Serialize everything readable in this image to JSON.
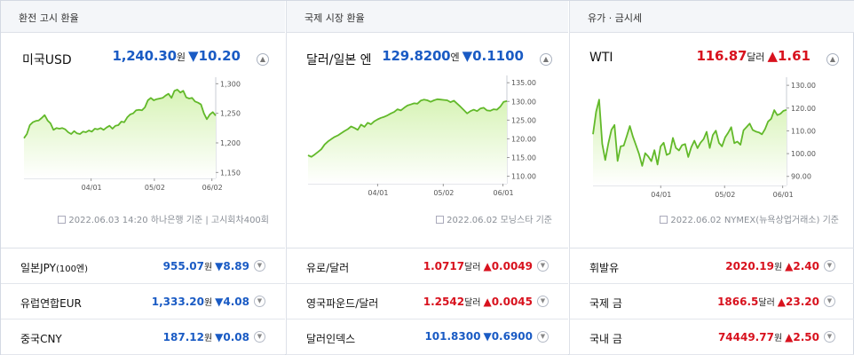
{
  "panels": [
    {
      "header": "환전 고시 환율",
      "name": "미국USD",
      "price": "1,240.30",
      "unit": "원",
      "arrow": "▼",
      "change": "10.20",
      "dir": "down",
      "source": "2022.06.03 14:20 하나은행 기준 | 고시회차400회",
      "rows": [
        {
          "name": "일본JPY",
          "sub": "(100엔)",
          "price": "955.07",
          "unit": "원",
          "arrow": "▼",
          "change": "8.89",
          "dir": "down"
        },
        {
          "name": "유럽연합EUR",
          "sub": "",
          "price": "1,333.20",
          "unit": "원",
          "arrow": "▼",
          "change": "4.08",
          "dir": "down"
        },
        {
          "name": "중국CNY",
          "sub": "",
          "price": "187.12",
          "unit": "원",
          "arrow": "▼",
          "change": "0.08",
          "dir": "down"
        }
      ]
    },
    {
      "header": "국제 시장 환율",
      "name": "달러/일본 엔",
      "price": "129.8200",
      "unit": "엔",
      "arrow": "▼",
      "change": "0.1100",
      "dir": "down",
      "source": "2022.06.02 모닝스타 기준",
      "rows": [
        {
          "name": "유로/달러",
          "sub": "",
          "price": "1.0717",
          "unit": "달러",
          "arrow": "▲",
          "change": "0.0049",
          "dir": "up"
        },
        {
          "name": "영국파운드/달러",
          "sub": "",
          "price": "1.2542",
          "unit": "달러",
          "arrow": "▲",
          "change": "0.0045",
          "dir": "up"
        },
        {
          "name": "달러인덱스",
          "sub": "",
          "price": "101.8300",
          "unit": "",
          "arrow": "▼",
          "change": "0.6900",
          "dir": "down"
        }
      ]
    },
    {
      "header": "유가 · 금시세",
      "name": "WTI",
      "price": "116.87",
      "unit": "달러",
      "arrow": "▲",
      "change": "1.61",
      "dir": "up",
      "source": "2022.06.02 NYMEX(뉴욕상업거래소) 기준",
      "rows": [
        {
          "name": "휘발유",
          "sub": "",
          "price": "2020.19",
          "unit": "원",
          "arrow": "▲",
          "change": "2.40",
          "dir": "up"
        },
        {
          "name": "국제 금",
          "sub": "",
          "price": "1866.5",
          "unit": "달러",
          "arrow": "▲",
          "change": "23.20",
          "dir": "up"
        },
        {
          "name": "국내 금",
          "sub": "",
          "price": "74449.77",
          "unit": "원",
          "arrow": "▲",
          "change": "2.50",
          "dir": "up"
        }
      ]
    }
  ],
  "chart_data": [
    {
      "type": "area",
      "x_ticks": [
        "04/01",
        "05/02",
        "06/02"
      ],
      "y_ticks": [
        "1,300",
        "1,250",
        "1,200",
        "1,150"
      ],
      "ylim": [
        1140,
        1305
      ],
      "x": [
        0,
        1,
        2,
        3,
        4,
        5,
        6,
        7,
        8,
        9,
        10,
        11,
        12,
        13,
        14,
        15,
        16,
        17,
        18,
        19,
        20,
        21,
        22,
        23,
        24,
        25,
        26,
        27,
        28,
        29,
        30,
        31,
        32,
        33,
        34,
        35,
        36,
        37,
        38,
        39,
        40,
        41,
        42,
        43,
        44,
        45,
        46,
        47,
        48,
        49,
        50,
        51,
        52,
        53,
        54,
        55,
        56,
        57,
        58,
        59,
        60,
        61,
        62,
        63,
        64,
        65
      ],
      "values": [
        1208,
        1215,
        1230,
        1235,
        1237,
        1238,
        1242,
        1247,
        1238,
        1233,
        1222,
        1225,
        1224,
        1225,
        1223,
        1218,
        1215,
        1220,
        1216,
        1215,
        1219,
        1218,
        1221,
        1219,
        1224,
        1223,
        1225,
        1222,
        1226,
        1229,
        1224,
        1229,
        1230,
        1236,
        1235,
        1243,
        1248,
        1250,
        1255,
        1256,
        1255,
        1260,
        1272,
        1276,
        1272,
        1274,
        1275,
        1276,
        1280,
        1283,
        1276,
        1288,
        1290,
        1285,
        1288,
        1277,
        1275,
        1276,
        1270,
        1268,
        1265,
        1250,
        1240,
        1248,
        1252,
        1246
      ],
      "fill": "#d7f3b6",
      "line": "#62b92a"
    },
    {
      "type": "area",
      "x_ticks": [
        "04/01",
        "05/02",
        "06/01"
      ],
      "y_ticks": [
        "135.00",
        "130.00",
        "125.00",
        "120.00",
        "115.00",
        "110.00"
      ],
      "ylim": [
        108,
        136
      ],
      "x": [
        0,
        1,
        2,
        3,
        4,
        5,
        6,
        7,
        8,
        9,
        10,
        11,
        12,
        13,
        14,
        15,
        16,
        17,
        18,
        19,
        20,
        21,
        22,
        23,
        24,
        25,
        26,
        27,
        28,
        29,
        30,
        31,
        32,
        33,
        34,
        35,
        36,
        37,
        38,
        39,
        40,
        41,
        42,
        43,
        44,
        45,
        46,
        47,
        48,
        49,
        50,
        51,
        52,
        53,
        54,
        55,
        56,
        57,
        58,
        59,
        60
      ],
      "values": [
        115.6,
        115.2,
        115.8,
        116.5,
        117.2,
        118.5,
        119.3,
        119.9,
        120.5,
        120.9,
        121.5,
        122.1,
        122.6,
        123.3,
        122.9,
        122.4,
        123.8,
        123.2,
        124.3,
        123.9,
        124.7,
        125.2,
        125.6,
        125.9,
        126.3,
        126.8,
        127.2,
        127.9,
        127.6,
        128.3,
        128.9,
        129.2,
        129.5,
        129.4,
        130.2,
        130.5,
        130.3,
        129.9,
        130.3,
        130.6,
        130.5,
        130.4,
        130.3,
        129.8,
        130.2,
        129.4,
        128.6,
        127.7,
        126.8,
        127.4,
        127.8,
        127.4,
        128.1,
        128.3,
        127.6,
        127.5,
        127.9,
        127.8,
        128.6,
        129.9,
        130.1
      ],
      "fill": "#d7f3b6",
      "line": "#62b92a"
    },
    {
      "type": "area",
      "x_ticks": [
        "04/01",
        "05/02",
        "06/01"
      ],
      "y_ticks": [
        "130.00",
        "120.00",
        "110.00",
        "100.00",
        "90.00"
      ],
      "ylim": [
        86,
        132
      ],
      "x": [
        0,
        1,
        2,
        3,
        4,
        5,
        6,
        7,
        8,
        9,
        10,
        11,
        12,
        13,
        14,
        15,
        16,
        17,
        18,
        19,
        20,
        21,
        22,
        23,
        24,
        25,
        26,
        27,
        28,
        29,
        30,
        31,
        32,
        33,
        34,
        35,
        36,
        37,
        38,
        39,
        40,
        41,
        42,
        43,
        44,
        45,
        46,
        47,
        48,
        49,
        50,
        51,
        52,
        53,
        54,
        55,
        56,
        57,
        58,
        59,
        60,
        61,
        62,
        63
      ],
      "values": [
        108.5,
        118.4,
        123.7,
        104.3,
        97.2,
        104.5,
        110.5,
        112.6,
        96.8,
        103.2,
        103.5,
        107.8,
        112.1,
        107.4,
        103.7,
        99.8,
        94.6,
        100.2,
        98.7,
        96.7,
        101.5,
        95.2,
        103.1,
        104.8,
        99.4,
        100.1,
        106.9,
        102.5,
        101.4,
        103.7,
        104.2,
        98.5,
        102.8,
        105.7,
        102.4,
        104.8,
        106.4,
        109.6,
        102.5,
        108.2,
        110.1,
        104.7,
        103.2,
        107.1,
        109.2,
        111.6,
        104.6,
        105.3,
        103.9,
        110.3,
        111.7,
        113.2,
        110.4,
        109.7,
        109.3,
        108.5,
        110.8,
        114.1,
        115.3,
        119.1,
        116.9,
        117.5,
        118.8,
        119.2
      ],
      "fill": "#d7f3b6",
      "line": "#62b92a"
    }
  ]
}
